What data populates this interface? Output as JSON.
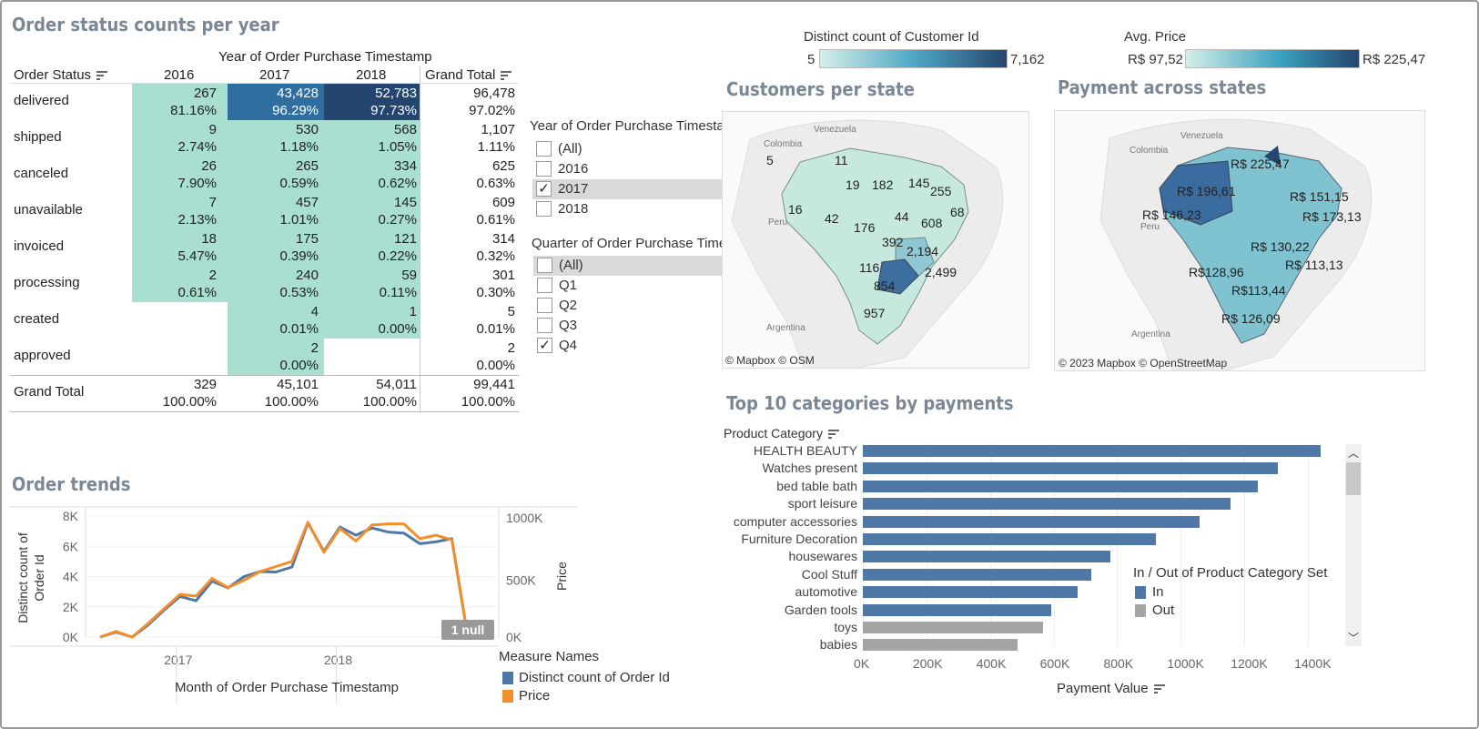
{
  "titles": {
    "status": "Order status counts per year",
    "trends": "Order trends",
    "customers": "Customers per state",
    "payment": "Payment across states",
    "top10": "Top 10 categories by payments"
  },
  "status_table": {
    "col_group_header": "Year of Order Purchase Timestamp",
    "row_header": "Order Status",
    "columns": [
      "2016",
      "2017",
      "2018",
      "Grand Total"
    ],
    "rows": [
      {
        "status": "delivered",
        "cells": [
          [
            "267",
            "81.16%"
          ],
          [
            "43,428",
            "96.29%"
          ],
          [
            "52,783",
            "97.73%"
          ],
          [
            "96,478",
            "97.02%"
          ]
        ]
      },
      {
        "status": "shipped",
        "cells": [
          [
            "9",
            "2.74%"
          ],
          [
            "530",
            "1.18%"
          ],
          [
            "568",
            "1.05%"
          ],
          [
            "1,107",
            "1.11%"
          ]
        ]
      },
      {
        "status": "canceled",
        "cells": [
          [
            "26",
            "7.90%"
          ],
          [
            "265",
            "0.59%"
          ],
          [
            "334",
            "0.62%"
          ],
          [
            "625",
            "0.63%"
          ]
        ]
      },
      {
        "status": "unavailable",
        "cells": [
          [
            "7",
            "2.13%"
          ],
          [
            "457",
            "1.01%"
          ],
          [
            "145",
            "0.27%"
          ],
          [
            "609",
            "0.61%"
          ]
        ]
      },
      {
        "status": "invoiced",
        "cells": [
          [
            "18",
            "5.47%"
          ],
          [
            "175",
            "0.39%"
          ],
          [
            "121",
            "0.22%"
          ],
          [
            "314",
            "0.32%"
          ]
        ]
      },
      {
        "status": "processing",
        "cells": [
          [
            "2",
            "0.61%"
          ],
          [
            "240",
            "0.53%"
          ],
          [
            "59",
            "0.11%"
          ],
          [
            "301",
            "0.30%"
          ]
        ]
      },
      {
        "status": "created",
        "cells": [
          [
            "",
            ""
          ],
          [
            "4",
            "0.01%"
          ],
          [
            "1",
            "0.00%"
          ],
          [
            "5",
            "0.01%"
          ]
        ]
      },
      {
        "status": "approved",
        "cells": [
          [
            "",
            ""
          ],
          [
            "2",
            "0.00%"
          ],
          [
            "",
            ""
          ],
          [
            "2",
            "0.00%"
          ]
        ]
      }
    ],
    "grand_total": {
      "label": "Grand Total",
      "cells": [
        [
          "329",
          "100.00%"
        ],
        [
          "45,101",
          "100.00%"
        ],
        [
          "54,011",
          "100.00%"
        ],
        [
          "99,441",
          "100.00%"
        ]
      ]
    }
  },
  "filter_year": {
    "title": "Year of Order Purchase Timestamp",
    "options": [
      {
        "label": "(All)",
        "checked": false
      },
      {
        "label": "2016",
        "checked": false
      },
      {
        "label": "2017",
        "checked": true
      },
      {
        "label": "2018",
        "checked": false
      }
    ]
  },
  "filter_quarter": {
    "title": "Quarter of Order Purchase Timest..",
    "options": [
      {
        "label": "(All)",
        "checked": false
      },
      {
        "label": "Q1",
        "checked": false
      },
      {
        "label": "Q2",
        "checked": false
      },
      {
        "label": "Q3",
        "checked": false
      },
      {
        "label": "Q4",
        "checked": true
      }
    ]
  },
  "legend_customers": {
    "title": "Distinct count of Customer Id",
    "min": "5",
    "max": "7,162",
    "colors": [
      "#d4efe8",
      "#2e6f9e",
      "#24456f"
    ]
  },
  "legend_price": {
    "title": "Avg. Price",
    "min": "R$ 97,52",
    "max": "R$ 225,47",
    "colors": [
      "#d4efe8",
      "#3aa0bf",
      "#24456f"
    ]
  },
  "map_customers": {
    "attribution": "© Mapbox © OSM",
    "country_labels": [
      "Venezuela",
      "Colombia",
      "Peru",
      "Argentina"
    ],
    "state_labels": [
      "5",
      "11",
      "19",
      "182",
      "145",
      "255",
      "16",
      "42",
      "176",
      "44",
      "608",
      "68",
      "392",
      "2,194",
      "116",
      "2,499",
      "854",
      "957"
    ]
  },
  "map_payment": {
    "attribution": "© 2023 Mapbox © OpenStreetMap",
    "country_labels": [
      "Venezuela",
      "Colombia",
      "Peru",
      "Argentina"
    ],
    "state_labels": [
      "R$ 225,47",
      "R$ 196,61",
      "R$ 151,15",
      "R$ 146,23",
      "R$ 173,13",
      "R$ 130,22",
      "R$ 113,13",
      "R$128,96",
      "R$113,44",
      "R$ 126,09"
    ]
  },
  "order_trends": {
    "ylabel_left": "Distinct count of Order Id",
    "ylabel_right": "Price",
    "xlabel": "Month of Order Purchase Timestamp",
    "left_ticks": [
      "8K",
      "6K",
      "4K",
      "2K",
      "0K"
    ],
    "right_ticks": [
      "1000K",
      "500K",
      "0K"
    ],
    "x_ticks": [
      "2017",
      "2018"
    ],
    "null_badge": "1 null",
    "legend_title": "Measure Names",
    "legend_items": [
      {
        "label": "Distinct count of Order Id",
        "color": "#4e79a7"
      },
      {
        "label": "Price",
        "color": "#f28e2b"
      }
    ]
  },
  "top10": {
    "ylabel": "Product Category",
    "xlabel": "Payment Value",
    "x_ticks": [
      "0K",
      "200K",
      "400K",
      "600K",
      "800K",
      "1000K",
      "1200K",
      "1400K"
    ],
    "legend_title": "In / Out of Product Category Set",
    "legend_items": [
      {
        "label": "In",
        "color": "#4e79a7"
      },
      {
        "label": "Out",
        "color": "#a5a5a5"
      }
    ]
  },
  "chart_data": [
    {
      "type": "line",
      "title": "Order trends",
      "xlabel": "Month of Order Purchase Timestamp",
      "ylabel": "Distinct count of Order Id",
      "x": [
        "2016-09",
        "2016-10",
        "2016-12",
        "2017-01",
        "2017-02",
        "2017-03",
        "2017-04",
        "2017-05",
        "2017-06",
        "2017-07",
        "2017-08",
        "2017-09",
        "2017-10",
        "2017-11",
        "2017-12",
        "2018-01",
        "2018-02",
        "2018-03",
        "2018-04",
        "2018-05",
        "2018-06",
        "2018-07",
        "2018-08",
        "2018-09"
      ],
      "series": [
        {
          "name": "Distinct count of Order Id",
          "axis": "left",
          "ylim": [
            0,
            8000
          ],
          "values": [
            4,
            324,
            1,
            800,
            1780,
            2680,
            2400,
            3700,
            3250,
            4000,
            4330,
            4300,
            4630,
            7540,
            5670,
            7270,
            6730,
            7210,
            6940,
            6870,
            6170,
            6290,
            6510,
            16
          ]
        },
        {
          "name": "Price",
          "axis": "right",
          "ylim": [
            0,
            1000000
          ],
          "values": [
            270,
            49500,
            0,
            120000,
            250000,
            375000,
            360000,
            515000,
            435000,
            500000,
            575000,
            620000,
            665000,
            1010000,
            745000,
            955000,
            845000,
            985000,
            995000,
            995000,
            865000,
            895000,
            855000,
            0
          ]
        }
      ]
    },
    {
      "type": "bar",
      "title": "Top 10 categories by payments",
      "xlabel": "Payment Value",
      "ylabel": "Product Category",
      "xlim": [
        0,
        1500000
      ],
      "categories": [
        "HEALTH BEAUTY",
        "Watches present",
        "bed table bath",
        "sport leisure",
        "computer accessories",
        "Furniture Decoration",
        "housewares",
        "Cool Stuff",
        "automotive",
        "Garden tools",
        "toys",
        "babies"
      ],
      "values": [
        1441000,
        1305000,
        1242000,
        1157000,
        1060000,
        922000,
        780000,
        719000,
        677000,
        593000,
        566000,
        486000
      ],
      "set": [
        "In",
        "In",
        "In",
        "In",
        "In",
        "In",
        "In",
        "In",
        "In",
        "In",
        "Out",
        "Out"
      ]
    }
  ]
}
